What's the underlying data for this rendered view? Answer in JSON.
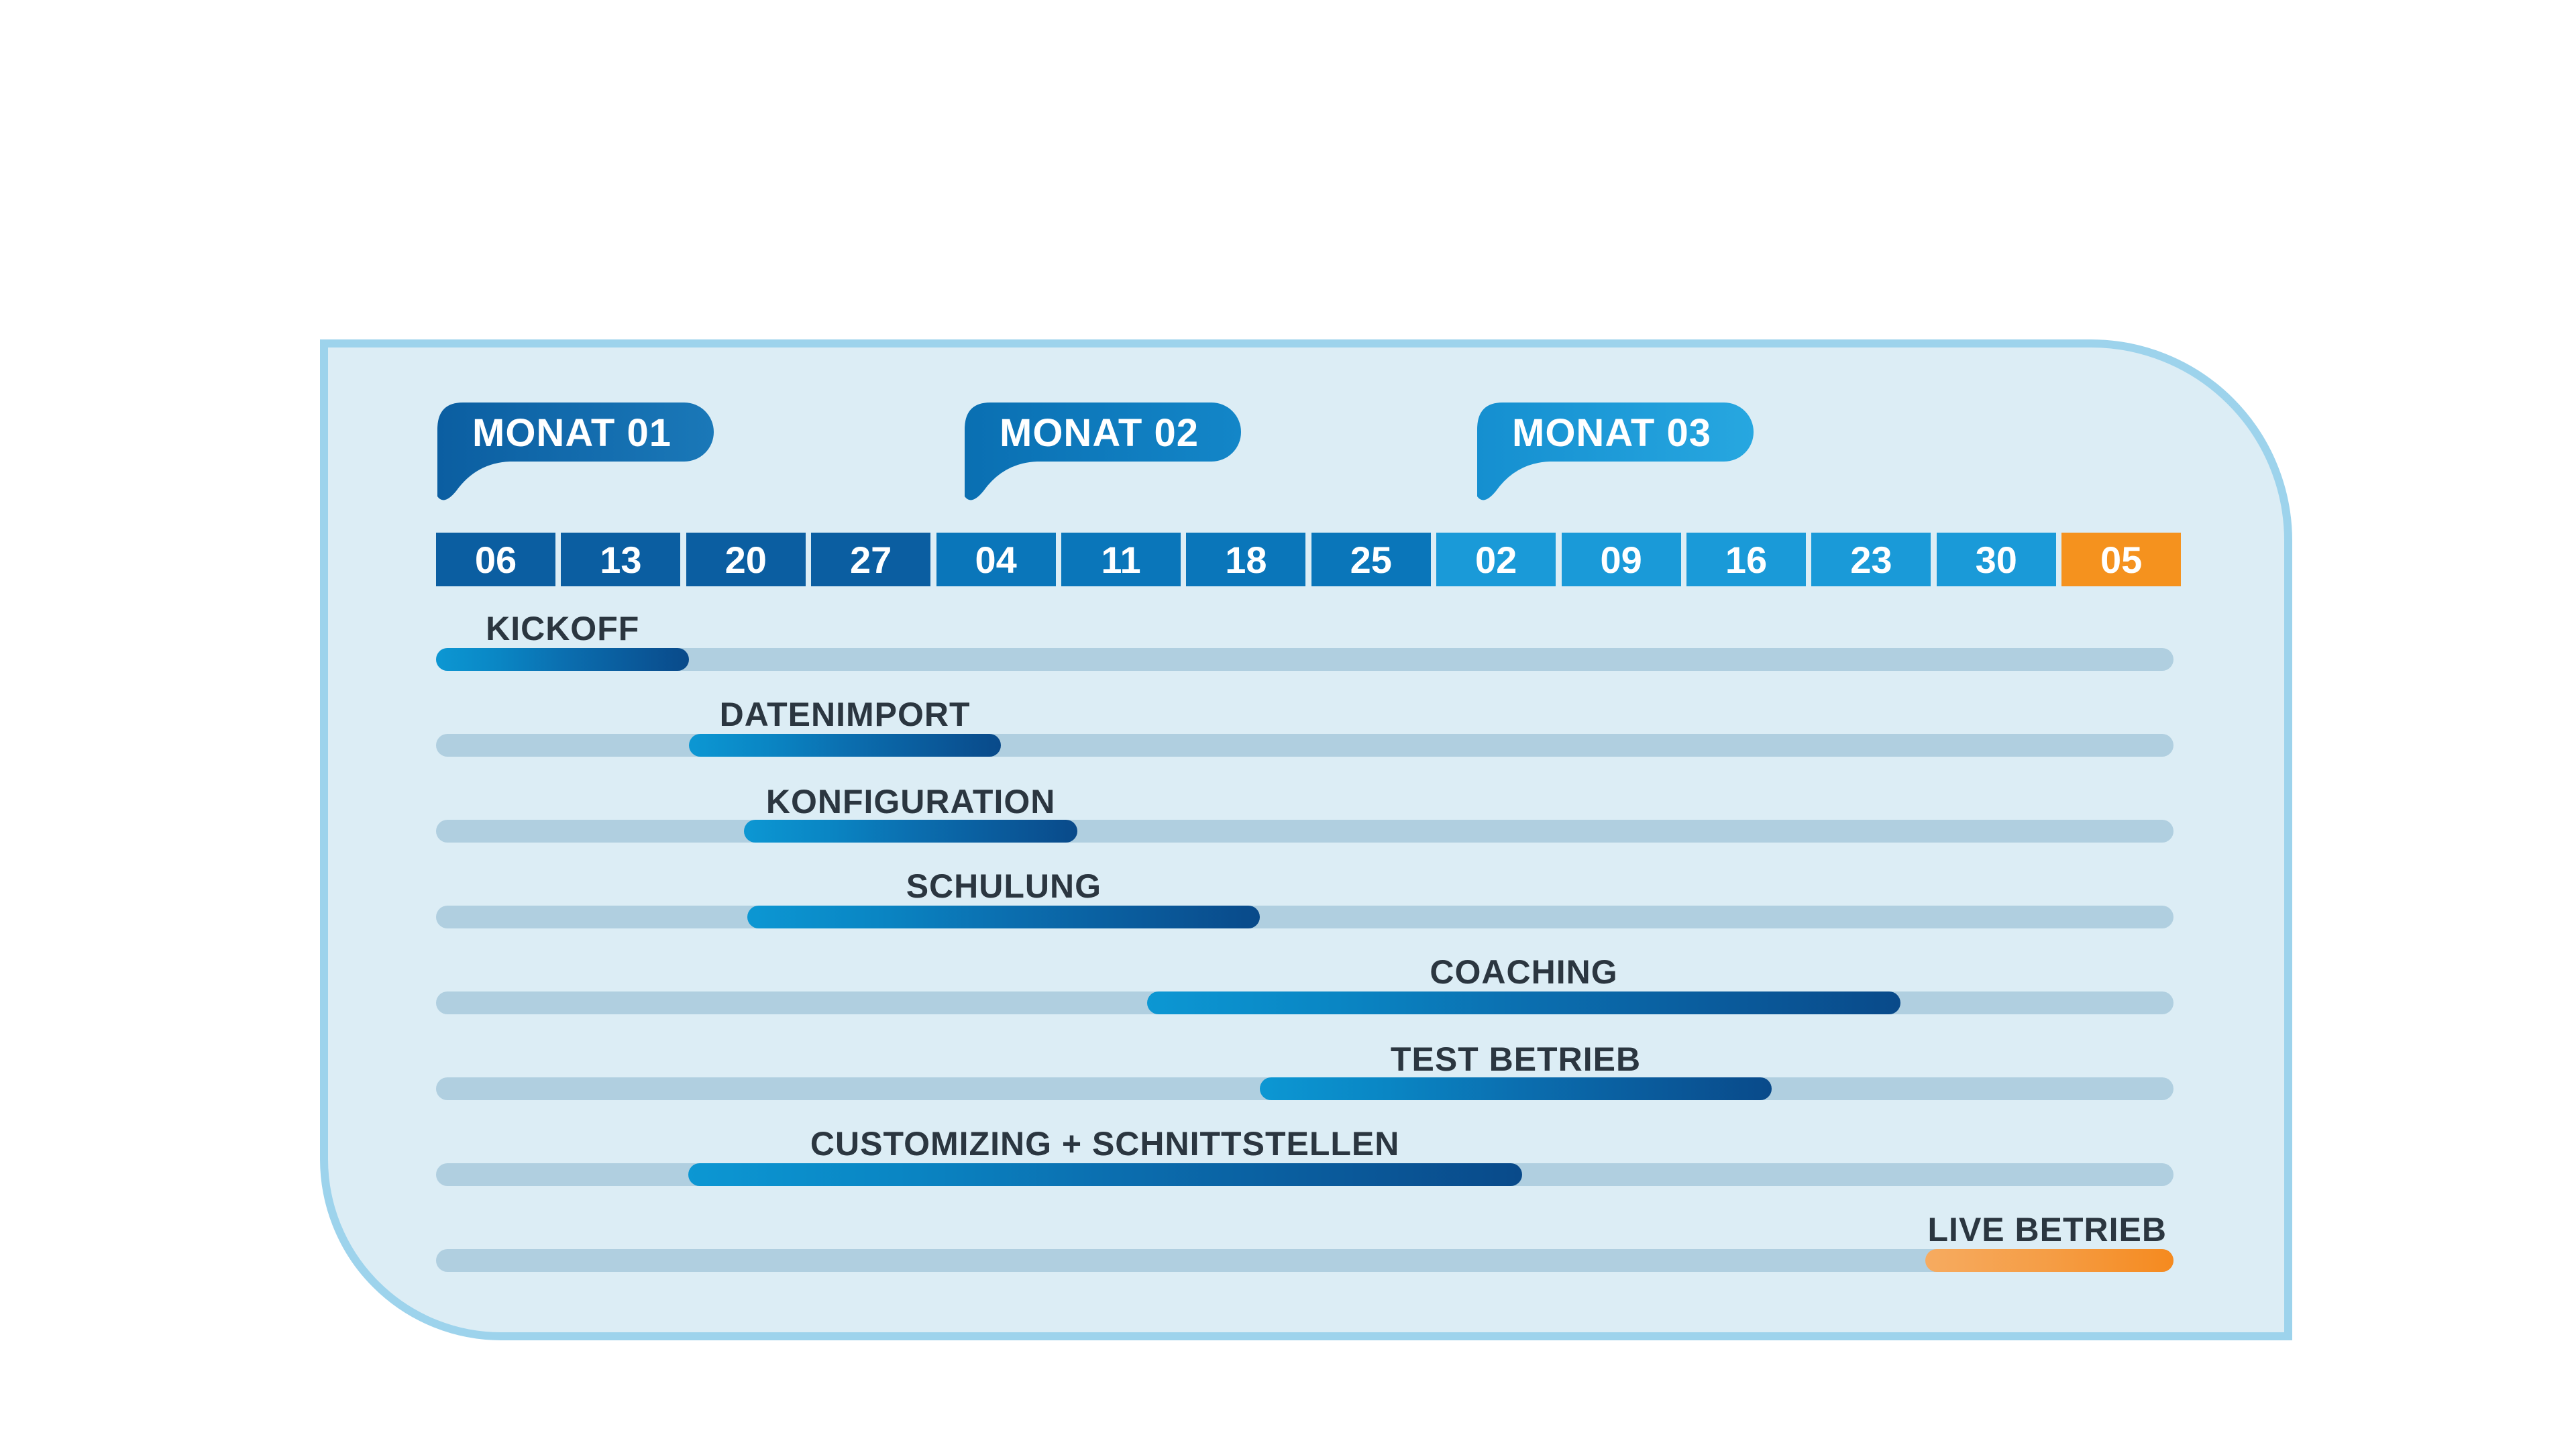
{
  "months": [
    {
      "label": "MONAT 01",
      "color_light": "#1a78b8",
      "color_dark": "#0b5ea1"
    },
    {
      "label": "MONAT 02",
      "color_light": "#1386c8",
      "color_dark": "#0a6fb2"
    },
    {
      "label": "MONAT 03",
      "color_light": "#27a7e0",
      "color_dark": "#158fd0"
    }
  ],
  "weeks": [
    {
      "label": "06",
      "color": "#0b5ea1"
    },
    {
      "label": "13",
      "color": "#0b5ea1"
    },
    {
      "label": "20",
      "color": "#0b5ea1"
    },
    {
      "label": "27",
      "color": "#0b5ea1"
    },
    {
      "label": "04",
      "color": "#0a76ba"
    },
    {
      "label": "11",
      "color": "#0a76ba"
    },
    {
      "label": "18",
      "color": "#0a76ba"
    },
    {
      "label": "25",
      "color": "#0a76ba"
    },
    {
      "label": "02",
      "color": "#1a9ad8"
    },
    {
      "label": "09",
      "color": "#1a9ad8"
    },
    {
      "label": "16",
      "color": "#1a9ad8"
    },
    {
      "label": "23",
      "color": "#1a9ad8"
    },
    {
      "label": "30",
      "color": "#1a9ad8"
    },
    {
      "label": "05",
      "color": "#f5921e"
    }
  ],
  "tasks": [
    {
      "label": "KICKOFF",
      "start_week": 0.0,
      "end_week": 2.04,
      "color": "blue"
    },
    {
      "label": "DATENIMPORT",
      "start_week": 2.04,
      "end_week": 4.55,
      "color": "blue"
    },
    {
      "label": "KONFIGURATION",
      "start_week": 2.48,
      "end_week": 5.17,
      "color": "blue"
    },
    {
      "label": "SCHULUNG",
      "start_week": 2.51,
      "end_week": 6.64,
      "color": "blue"
    },
    {
      "label": "COACHING",
      "start_week": 5.73,
      "end_week": 11.8,
      "color": "blue"
    },
    {
      "label": "TEST BETRIEB",
      "start_week": 6.64,
      "end_week": 10.76,
      "color": "blue"
    },
    {
      "label": "CUSTOMIZING + SCHNITTSTELLEN",
      "start_week": 2.03,
      "end_week": 8.75,
      "color": "blue"
    },
    {
      "label": "LIVE BETRIEB",
      "start_week": 12.0,
      "end_week": 14.0,
      "color": "orange"
    }
  ]
}
